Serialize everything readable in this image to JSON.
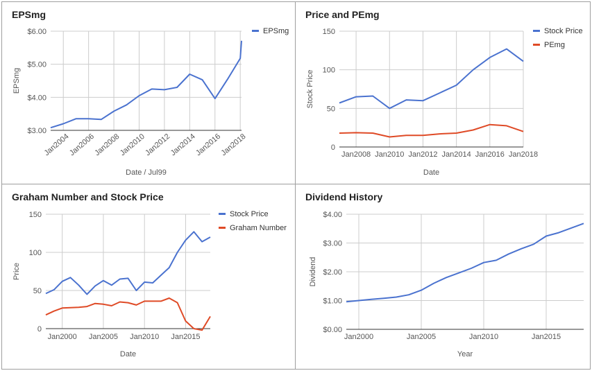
{
  "colors": {
    "blue": "#4a72cf",
    "red": "#df4a26",
    "grid": "#cccccc",
    "axis": "#333333",
    "tick": "#555555"
  },
  "chart_data": [
    {
      "id": "eps",
      "type": "line",
      "title": "EPSmg",
      "xlabel": "Date / Jul99",
      "ylabel": "EPSmg",
      "x_ticks": [
        "Jan2004",
        "Jan2006",
        "Jan2008",
        "Jan2010",
        "Jan2012",
        "Jan2014",
        "Jan2016",
        "Jan2018"
      ],
      "x_tick_values": [
        2004,
        2006,
        2008,
        2010,
        2012,
        2014,
        2016,
        2018
      ],
      "x_tick_rotate": true,
      "xlim": [
        2003,
        2018.1
      ],
      "y_ticks": [
        "$3.00",
        "$4.00",
        "$5.00",
        "$6.00"
      ],
      "y_tick_values": [
        3,
        4,
        5,
        6
      ],
      "ylim": [
        3,
        6
      ],
      "grid": true,
      "legend_position": "right",
      "series": [
        {
          "name": "EPSmg",
          "color": "#4a72cf",
          "x": [
            2003,
            2004,
            2005,
            2006,
            2007,
            2008,
            2009,
            2010,
            2011,
            2012,
            2013,
            2014,
            2015,
            2016,
            2017,
            2018,
            2018.1
          ],
          "y": [
            3.08,
            3.2,
            3.35,
            3.35,
            3.33,
            3.58,
            3.77,
            4.05,
            4.25,
            4.23,
            4.3,
            4.7,
            4.53,
            3.96,
            4.55,
            5.18,
            5.71
          ]
        }
      ]
    },
    {
      "id": "pe",
      "type": "line",
      "title": "Price and PEmg",
      "xlabel": "Date",
      "ylabel": "Stock Price",
      "x_ticks": [
        "Jan2008",
        "Jan2010",
        "Jan2012",
        "Jan2014",
        "Jan2016",
        "Jan2018"
      ],
      "x_tick_values": [
        2008,
        2010,
        2012,
        2014,
        2016,
        2018
      ],
      "x_tick_rotate": false,
      "xlim": [
        2007,
        2018
      ],
      "y_ticks": [
        "0",
        "50",
        "100",
        "150"
      ],
      "y_tick_values": [
        0,
        50,
        100,
        150
      ],
      "ylim": [
        0,
        150
      ],
      "grid": true,
      "legend_position": "right",
      "series": [
        {
          "name": "Stock Price",
          "color": "#4a72cf",
          "x": [
            2007,
            2008,
            2009,
            2010,
            2011,
            2012,
            2013,
            2014,
            2015,
            2016,
            2017,
            2018
          ],
          "y": [
            57,
            65,
            66,
            50,
            61,
            60,
            70,
            80,
            100,
            116,
            127,
            111
          ]
        },
        {
          "name": "PEmg",
          "color": "#df4a26",
          "x": [
            2007,
            2008,
            2009,
            2010,
            2011,
            2012,
            2013,
            2014,
            2015,
            2016,
            2017,
            2018
          ],
          "y": [
            18,
            18.5,
            18,
            13,
            15,
            15,
            17,
            18,
            22,
            29,
            27.5,
            20
          ]
        }
      ]
    },
    {
      "id": "graham",
      "type": "line",
      "title": "Graham Number and Stock Price",
      "xlabel": "Date",
      "ylabel": "Price",
      "x_ticks": [
        "Jan2000",
        "Jan2005",
        "Jan2010",
        "Jan2015"
      ],
      "x_tick_values": [
        2000,
        2005,
        2010,
        2015
      ],
      "x_tick_rotate": false,
      "xlim": [
        1998,
        2018
      ],
      "y_ticks": [
        "0",
        "50",
        "100",
        "150"
      ],
      "y_tick_values": [
        0,
        50,
        100,
        150
      ],
      "ylim": [
        0,
        150
      ],
      "grid": true,
      "legend_position": "right",
      "series": [
        {
          "name": "Stock Price",
          "color": "#4a72cf",
          "x": [
            1998,
            1999,
            2000,
            2001,
            2002,
            2003,
            2004,
            2005,
            2006,
            2007,
            2008,
            2009,
            2010,
            2011,
            2012,
            2013,
            2014,
            2015,
            2016,
            2017,
            2018
          ],
          "y": [
            46,
            51,
            62,
            67,
            57,
            45,
            56,
            63,
            57,
            65,
            66,
            50,
            61,
            60,
            70,
            80,
            100,
            116,
            127,
            114,
            120
          ]
        },
        {
          "name": "Graham Number",
          "color": "#df4a26",
          "x": [
            1998,
            1999,
            2000,
            2001,
            2002,
            2003,
            2004,
            2005,
            2006,
            2007,
            2008,
            2009,
            2010,
            2011,
            2012,
            2013,
            2014,
            2015,
            2016,
            2017,
            2018
          ],
          "y": [
            18,
            23,
            27,
            27.5,
            28,
            29,
            33,
            32,
            30,
            35,
            34,
            31,
            36,
            36,
            36,
            40,
            34,
            10,
            0,
            -2,
            16
          ]
        }
      ]
    },
    {
      "id": "dividend",
      "type": "line",
      "title": "Dividend History",
      "xlabel": "Year",
      "ylabel": "Dividend",
      "x_ticks": [
        "Jan2000",
        "Jan2005",
        "Jan2010",
        "Jan2015"
      ],
      "x_tick_values": [
        2000,
        2005,
        2010,
        2015
      ],
      "x_tick_rotate": false,
      "xlim": [
        1999,
        2018
      ],
      "y_ticks": [
        "$0.00",
        "$1.00",
        "$2.00",
        "$3.00",
        "$4.00"
      ],
      "y_tick_values": [
        0,
        1,
        2,
        3,
        4
      ],
      "ylim": [
        0,
        4
      ],
      "grid": true,
      "legend_position": "none",
      "series": [
        {
          "name": "",
          "color": "#4a72cf",
          "x": [
            1999,
            2000,
            2001,
            2002,
            2003,
            2004,
            2005,
            2006,
            2007,
            2008,
            2009,
            2010,
            2011,
            2012,
            2013,
            2014,
            2015,
            2016,
            2017,
            2018
          ],
          "y": [
            0.96,
            1.0,
            1.04,
            1.08,
            1.12,
            1.2,
            1.36,
            1.6,
            1.8,
            1.96,
            2.12,
            2.32,
            2.4,
            2.62,
            2.8,
            2.96,
            3.24,
            3.36,
            3.52,
            3.68
          ]
        }
      ]
    }
  ]
}
